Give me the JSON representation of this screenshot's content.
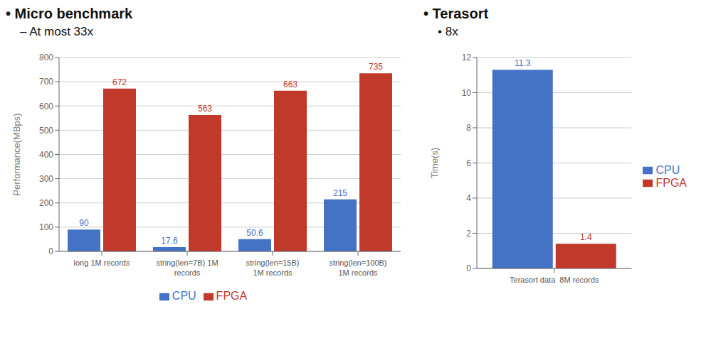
{
  "chart_data": [
    {
      "type": "bar",
      "title": "•  Micro benchmark",
      "subtitle": "–  At most 33x",
      "categories": [
        "long 1M records",
        "string(len=7B) 1M\nrecords",
        "string(len=15B)\n1M records",
        "string(len=100B)\n1M records"
      ],
      "series": [
        {
          "name": "CPU",
          "color": "#4472c4",
          "values": [
            90,
            17.6,
            50.6,
            215
          ]
        },
        {
          "name": "FPGA",
          "color": "#c0392b",
          "values": [
            672,
            563,
            663,
            735
          ]
        }
      ],
      "ylabel": "Performance(MBps)",
      "ylim": [
        0,
        800
      ],
      "yticks": [
        0,
        100,
        200,
        300,
        400,
        500,
        600,
        700,
        800
      ],
      "grid": true,
      "legend": "bottom",
      "data_labels": true
    },
    {
      "type": "bar",
      "title": "•  Terasort",
      "subtitle": "•  8x",
      "categories": [
        "Terasort data  8M records"
      ],
      "series": [
        {
          "name": "CPU",
          "color": "#4472c4",
          "values": [
            11.3
          ]
        },
        {
          "name": "FPGA",
          "color": "#c0392b",
          "values": [
            1.4
          ]
        }
      ],
      "ylabel": "Time(s)",
      "ylim": [
        0,
        12
      ],
      "yticks": [
        0,
        2,
        4,
        6,
        8,
        10,
        12
      ],
      "grid": true,
      "legend": "right",
      "data_labels": true
    }
  ]
}
